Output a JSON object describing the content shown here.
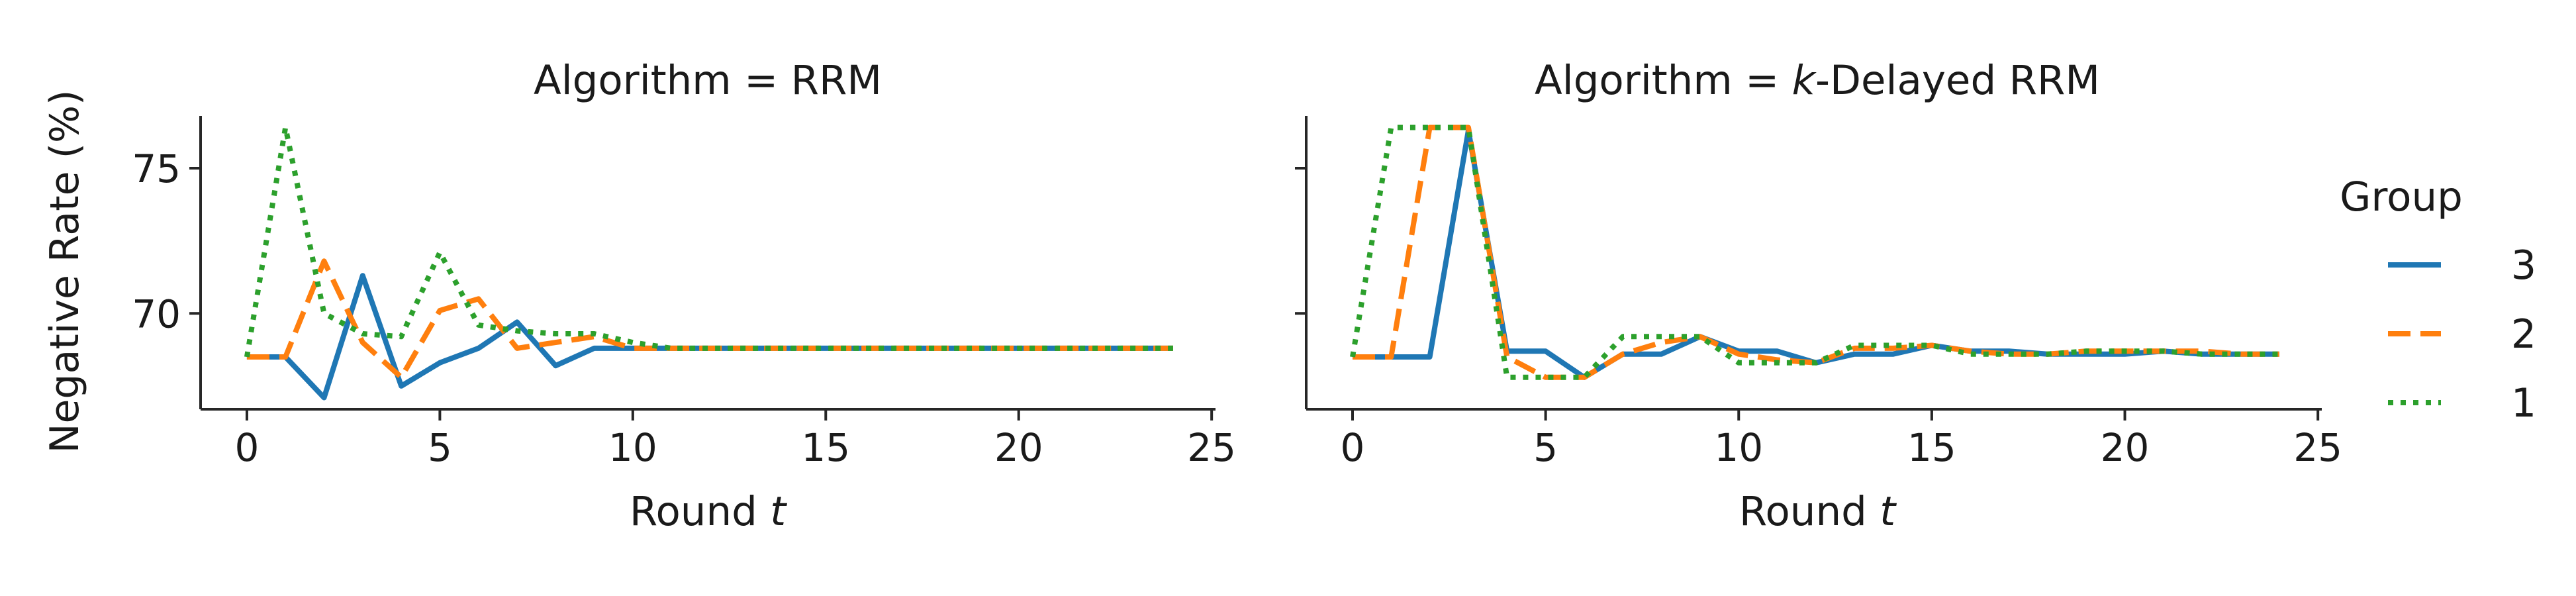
{
  "figure": {
    "ylabel": "Negative Rate (%)",
    "legend_title": "Group"
  },
  "chart_data": [
    {
      "type": "line",
      "title_prefix": "Algorithm = ",
      "title_italic": "",
      "title_suffix": "RRM",
      "xlabel_prefix": "Round ",
      "xlabel_italic": "t",
      "ylabel": "Negative Rate (%)",
      "xlim": [
        -1.2,
        25.1
      ],
      "ylim": [
        66.7,
        76.8
      ],
      "xticks": [
        0,
        5,
        10,
        15,
        20,
        25
      ],
      "yticks": [
        70,
        75
      ],
      "ytick_labels_shown": true,
      "x": [
        0,
        1,
        2,
        3,
        4,
        5,
        6,
        7,
        8,
        9,
        10,
        11,
        12,
        13,
        14,
        15,
        16,
        17,
        18,
        19,
        20,
        21,
        22,
        23,
        24
      ],
      "series": [
        {
          "name": "3",
          "color": "#1f77b4",
          "dash": "solid",
          "values": [
            68.5,
            68.5,
            67.1,
            71.3,
            67.5,
            68.3,
            68.8,
            69.7,
            68.2,
            68.8,
            68.8,
            68.8,
            68.8,
            68.8,
            68.8,
            68.8,
            68.8,
            68.8,
            68.8,
            68.8,
            68.8,
            68.8,
            68.8,
            68.8,
            68.8
          ]
        },
        {
          "name": "2",
          "color": "#ff7f0e",
          "dash": "dashed",
          "values": [
            68.5,
            68.5,
            71.8,
            69.0,
            67.8,
            70.1,
            70.5,
            68.8,
            69.0,
            69.2,
            68.8,
            68.8,
            68.8,
            68.8,
            68.8,
            68.8,
            68.8,
            68.8,
            68.8,
            68.8,
            68.8,
            68.8,
            68.8,
            68.8,
            68.8
          ]
        },
        {
          "name": "1",
          "color": "#2ca02c",
          "dash": "dotted",
          "values": [
            68.5,
            76.4,
            70.0,
            69.3,
            69.2,
            72.1,
            69.6,
            69.4,
            69.3,
            69.3,
            69.0,
            68.8,
            68.8,
            68.8,
            68.8,
            68.8,
            68.8,
            68.8,
            68.8,
            68.8,
            68.8,
            68.8,
            68.8,
            68.8,
            68.8
          ]
        }
      ]
    },
    {
      "type": "line",
      "title_prefix": "Algorithm = ",
      "title_italic": "k",
      "title_suffix": "-Delayed RRM",
      "xlabel_prefix": "Round ",
      "xlabel_italic": "t",
      "xlim": [
        -1.2,
        25.1
      ],
      "ylim": [
        66.7,
        76.8
      ],
      "xticks": [
        0,
        5,
        10,
        15,
        20,
        25
      ],
      "yticks": [
        70,
        75
      ],
      "ytick_labels_shown": false,
      "x": [
        0,
        1,
        2,
        3,
        4,
        5,
        6,
        7,
        8,
        9,
        10,
        11,
        12,
        13,
        14,
        15,
        16,
        17,
        18,
        19,
        20,
        21,
        22,
        23,
        24
      ],
      "series": [
        {
          "name": "3",
          "color": "#1f77b4",
          "dash": "solid",
          "values": [
            68.5,
            68.5,
            68.5,
            76.3,
            68.7,
            68.7,
            67.8,
            68.6,
            68.6,
            69.2,
            68.7,
            68.7,
            68.3,
            68.6,
            68.6,
            68.9,
            68.7,
            68.7,
            68.6,
            68.6,
            68.6,
            68.7,
            68.6,
            68.6,
            68.6
          ]
        },
        {
          "name": "2",
          "color": "#ff7f0e",
          "dash": "dashed",
          "values": [
            68.5,
            68.5,
            76.4,
            76.4,
            68.5,
            67.8,
            67.8,
            68.6,
            69.0,
            69.2,
            68.6,
            68.4,
            68.3,
            68.8,
            68.8,
            68.9,
            68.7,
            68.6,
            68.6,
            68.7,
            68.7,
            68.7,
            68.7,
            68.6,
            68.6
          ]
        },
        {
          "name": "1",
          "color": "#2ca02c",
          "dash": "dotted",
          "values": [
            68.5,
            76.4,
            76.4,
            76.4,
            67.8,
            67.8,
            67.8,
            69.2,
            69.2,
            69.2,
            68.3,
            68.3,
            68.3,
            68.9,
            68.9,
            68.9,
            68.6,
            68.6,
            68.6,
            68.7,
            68.7,
            68.7,
            68.6,
            68.6,
            68.6
          ]
        }
      ]
    }
  ]
}
